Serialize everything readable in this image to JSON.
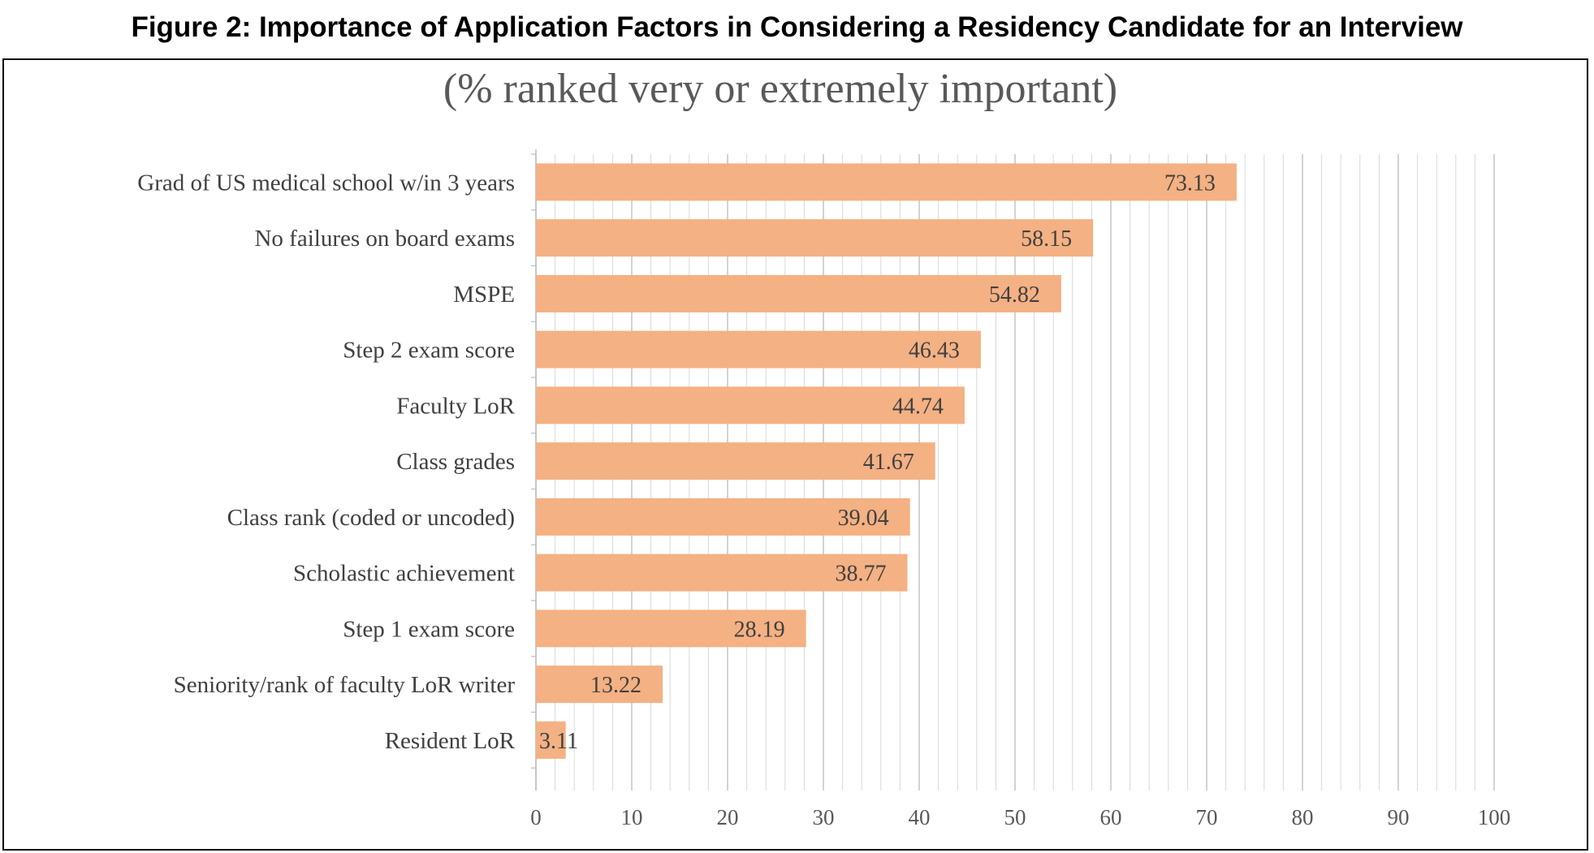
{
  "figure_title": "Figure 2: Importance of Application Factors in Considering a Residency Candidate for an Interview",
  "colors": {
    "bar": "#F4B183",
    "grid": "#D9D9D9",
    "axis": "#D9D9D9"
  },
  "chart_data": {
    "type": "bar",
    "orientation": "horizontal",
    "title": "(% ranked very or extremely important)",
    "categories": [
      "Grad of US medical school w/in 3 years",
      "No failures on board exams",
      "MSPE",
      "Step 2 exam score",
      "Faculty LoR",
      "Class grades",
      "Class rank (coded or uncoded)",
      "Scholastic achievement",
      "Step 1 exam score",
      "Seniority/rank of faculty LoR writer",
      "Resident LoR"
    ],
    "values": [
      73.13,
      58.15,
      54.82,
      46.43,
      44.74,
      41.67,
      39.04,
      38.77,
      28.19,
      13.22,
      3.11
    ],
    "data_labels": [
      "73.13",
      "58.15",
      "54.82",
      "46.43",
      "44.74",
      "41.67",
      "39.04",
      "38.77",
      "28.19",
      "13.22",
      "3.11"
    ],
    "xlim": [
      0,
      100
    ],
    "x_ticks": [
      "0",
      "10",
      "20",
      "30",
      "40",
      "50",
      "60",
      "70",
      "80",
      "90",
      "100"
    ],
    "grid": true,
    "legend": "none"
  }
}
